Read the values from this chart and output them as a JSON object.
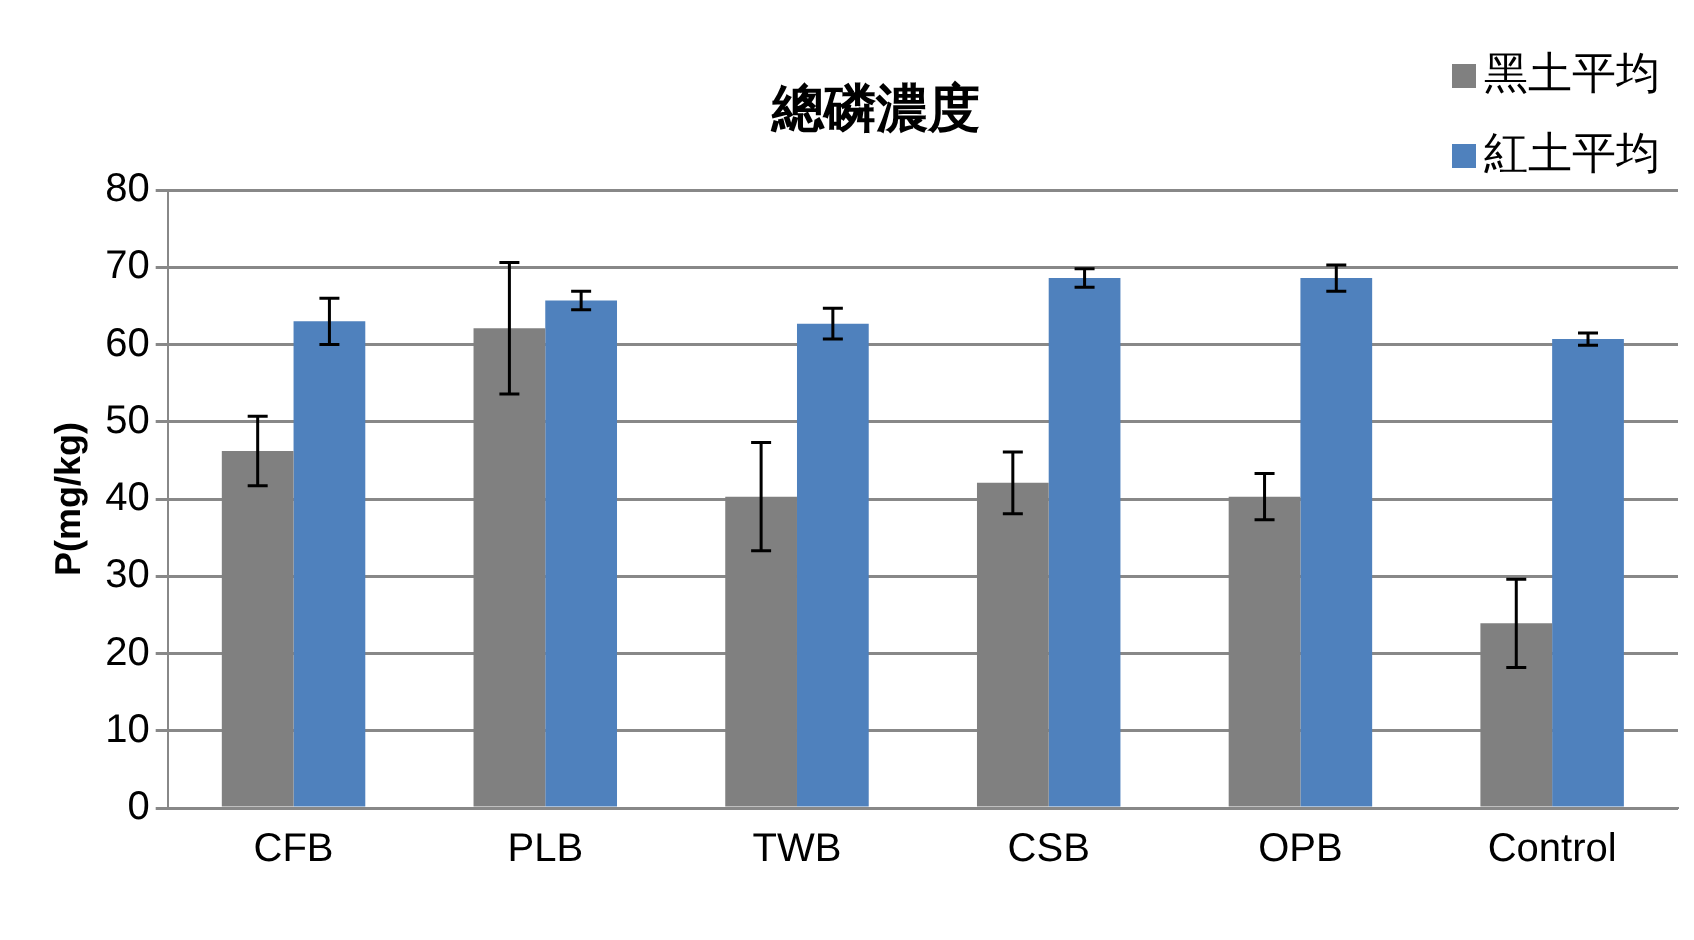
{
  "chart_data": {
    "type": "bar",
    "title": "總磷濃度",
    "ylabel": "P(mg/kg)",
    "categories": [
      "CFB",
      "PLB",
      "TWB",
      "CSB",
      "OPB",
      "Control"
    ],
    "series": [
      {
        "name": "黑土平均",
        "color": "#808080",
        "values": [
          46.2,
          62.1,
          40.3,
          42.1,
          40.3,
          23.9
        ],
        "errors": [
          4.5,
          8.5,
          7,
          4,
          3,
          5.7
        ]
      },
      {
        "name": "紅土平均",
        "color": "#4f81bd",
        "values": [
          63.0,
          65.7,
          62.7,
          68.6,
          68.6,
          60.7
        ],
        "errors": [
          3,
          1.2,
          2,
          1.2,
          1.7,
          0.8
        ]
      }
    ],
    "ylim": [
      0,
      80
    ],
    "yticks": [
      0,
      10,
      20,
      30,
      40,
      50,
      60,
      70,
      80
    ],
    "grid": "y",
    "legend": "top right"
  }
}
